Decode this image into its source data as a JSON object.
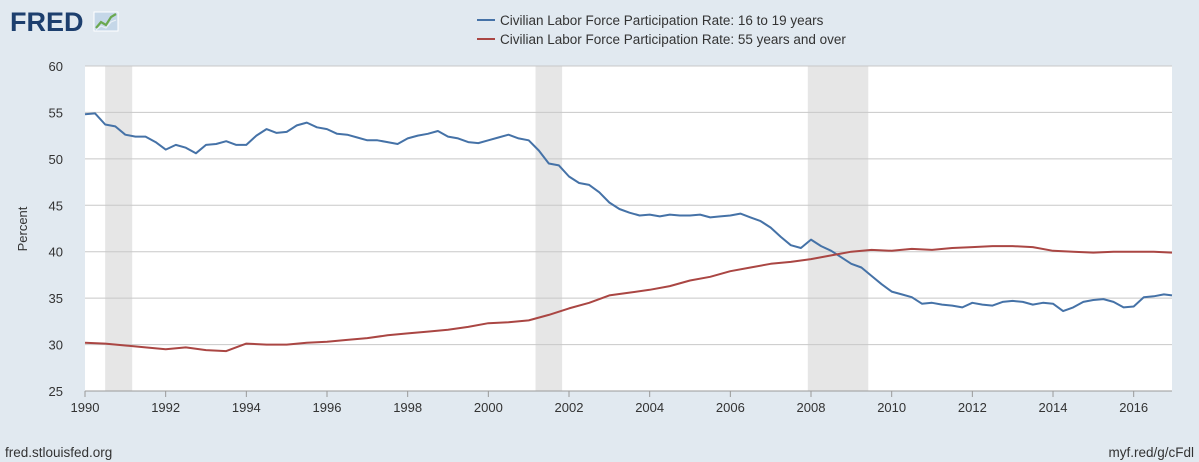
{
  "brand": {
    "logo": "FRED",
    "logo_icon": "line-graph-icon"
  },
  "footer": {
    "left": "fred.stlouisfed.org",
    "right": "myf.red/g/cFdl"
  },
  "chart_data": {
    "type": "line",
    "title": "",
    "xlabel": "",
    "ylabel": "Percent",
    "xlim": [
      1990.0,
      2016.95
    ],
    "ylim": [
      25,
      60
    ],
    "x_ticks": [
      "1990",
      "1992",
      "1994",
      "1996",
      "1998",
      "2000",
      "2002",
      "2004",
      "2006",
      "2008",
      "2010",
      "2012",
      "2014",
      "2016"
    ],
    "y_ticks": [
      "25",
      "30",
      "35",
      "40",
      "45",
      "50",
      "55",
      "60"
    ],
    "grid": true,
    "legend_position": "top-center",
    "recessions": [
      [
        1990.5,
        1991.17
      ],
      [
        2001.17,
        2001.83
      ],
      [
        2007.92,
        2009.42
      ]
    ],
    "series": [
      {
        "name": "Civilian Labor Force Participation Rate: 16 to 19 years",
        "color": "#4572a7",
        "x": [
          1990.0,
          1990.25,
          1990.5,
          1990.75,
          1991.0,
          1991.25,
          1991.5,
          1991.75,
          1992.0,
          1992.25,
          1992.5,
          1992.75,
          1993.0,
          1993.25,
          1993.5,
          1993.75,
          1994.0,
          1994.25,
          1994.5,
          1994.75,
          1995.0,
          1995.25,
          1995.5,
          1995.75,
          1996.0,
          1996.25,
          1996.5,
          1996.75,
          1997.0,
          1997.25,
          1997.5,
          1997.75,
          1998.0,
          1998.25,
          1998.5,
          1998.75,
          1999.0,
          1999.25,
          1999.5,
          1999.75,
          2000.0,
          2000.25,
          2000.5,
          2000.75,
          2001.0,
          2001.25,
          2001.5,
          2001.75,
          2002.0,
          2002.25,
          2002.5,
          2002.75,
          2003.0,
          2003.25,
          2003.5,
          2003.75,
          2004.0,
          2004.25,
          2004.5,
          2004.75,
          2005.0,
          2005.25,
          2005.5,
          2005.75,
          2006.0,
          2006.25,
          2006.5,
          2006.75,
          2007.0,
          2007.25,
          2007.5,
          2007.75,
          2008.0,
          2008.25,
          2008.5,
          2008.75,
          2009.0,
          2009.25,
          2009.5,
          2009.75,
          2010.0,
          2010.25,
          2010.5,
          2010.75,
          2011.0,
          2011.25,
          2011.5,
          2011.75,
          2012.0,
          2012.25,
          2012.5,
          2012.75,
          2013.0,
          2013.25,
          2013.5,
          2013.75,
          2014.0,
          2014.25,
          2014.5,
          2014.75,
          2015.0,
          2015.25,
          2015.5,
          2015.75,
          2016.0,
          2016.25,
          2016.5,
          2016.75,
          2016.95
        ],
        "values": [
          54.8,
          54.9,
          53.7,
          53.5,
          52.6,
          52.4,
          52.4,
          51.8,
          51.0,
          51.5,
          51.2,
          50.6,
          51.5,
          51.6,
          51.9,
          51.5,
          51.5,
          52.5,
          53.2,
          52.8,
          52.9,
          53.6,
          53.9,
          53.4,
          53.2,
          52.7,
          52.6,
          52.3,
          52.0,
          52.0,
          51.8,
          51.6,
          52.2,
          52.5,
          52.7,
          53.0,
          52.4,
          52.2,
          51.8,
          51.7,
          52.0,
          52.3,
          52.6,
          52.2,
          52.0,
          50.9,
          49.5,
          49.3,
          48.1,
          47.4,
          47.2,
          46.4,
          45.3,
          44.6,
          44.2,
          43.9,
          44.0,
          43.8,
          44.0,
          43.9,
          43.9,
          44.0,
          43.7,
          43.8,
          43.9,
          44.1,
          43.7,
          43.3,
          42.6,
          41.6,
          40.7,
          40.4,
          41.3,
          40.6,
          40.1,
          39.4,
          38.7,
          38.3,
          37.4,
          36.5,
          35.7,
          35.4,
          35.1,
          34.4,
          34.5,
          34.3,
          34.2,
          34.0,
          34.5,
          34.3,
          34.2,
          34.6,
          34.7,
          34.6,
          34.3,
          34.5,
          34.4,
          33.6,
          34.0,
          34.6,
          34.8,
          34.9,
          34.6,
          34.0,
          34.1,
          35.1,
          35.2,
          35.4,
          35.3
        ]
      },
      {
        "name": "Civilian Labor Force Participation Rate: 55 years and over",
        "color": "#aa4643",
        "x": [
          1990.0,
          1990.5,
          1991.0,
          1991.5,
          1992.0,
          1992.5,
          1993.0,
          1993.5,
          1994.0,
          1994.5,
          1995.0,
          1995.5,
          1996.0,
          1996.5,
          1997.0,
          1997.5,
          1998.0,
          1998.5,
          1999.0,
          1999.5,
          2000.0,
          2000.5,
          2001.0,
          2001.5,
          2002.0,
          2002.5,
          2003.0,
          2003.5,
          2004.0,
          2004.5,
          2005.0,
          2005.5,
          2006.0,
          2006.5,
          2007.0,
          2007.5,
          2008.0,
          2008.5,
          2009.0,
          2009.5,
          2010.0,
          2010.5,
          2011.0,
          2011.5,
          2012.0,
          2012.5,
          2013.0,
          2013.5,
          2014.0,
          2014.5,
          2015.0,
          2015.5,
          2016.0,
          2016.5,
          2016.95
        ],
        "values": [
          30.2,
          30.1,
          29.9,
          29.7,
          29.5,
          29.7,
          29.4,
          29.3,
          30.1,
          30.0,
          30.0,
          30.2,
          30.3,
          30.5,
          30.7,
          31.0,
          31.2,
          31.4,
          31.6,
          31.9,
          32.3,
          32.4,
          32.6,
          33.2,
          33.9,
          34.5,
          35.3,
          35.6,
          35.9,
          36.3,
          36.9,
          37.3,
          37.9,
          38.3,
          38.7,
          38.9,
          39.2,
          39.6,
          40.0,
          40.2,
          40.1,
          40.3,
          40.2,
          40.4,
          40.5,
          40.6,
          40.6,
          40.5,
          40.1,
          40.0,
          39.9,
          40.0,
          40.0,
          40.0,
          39.9
        ]
      }
    ]
  }
}
